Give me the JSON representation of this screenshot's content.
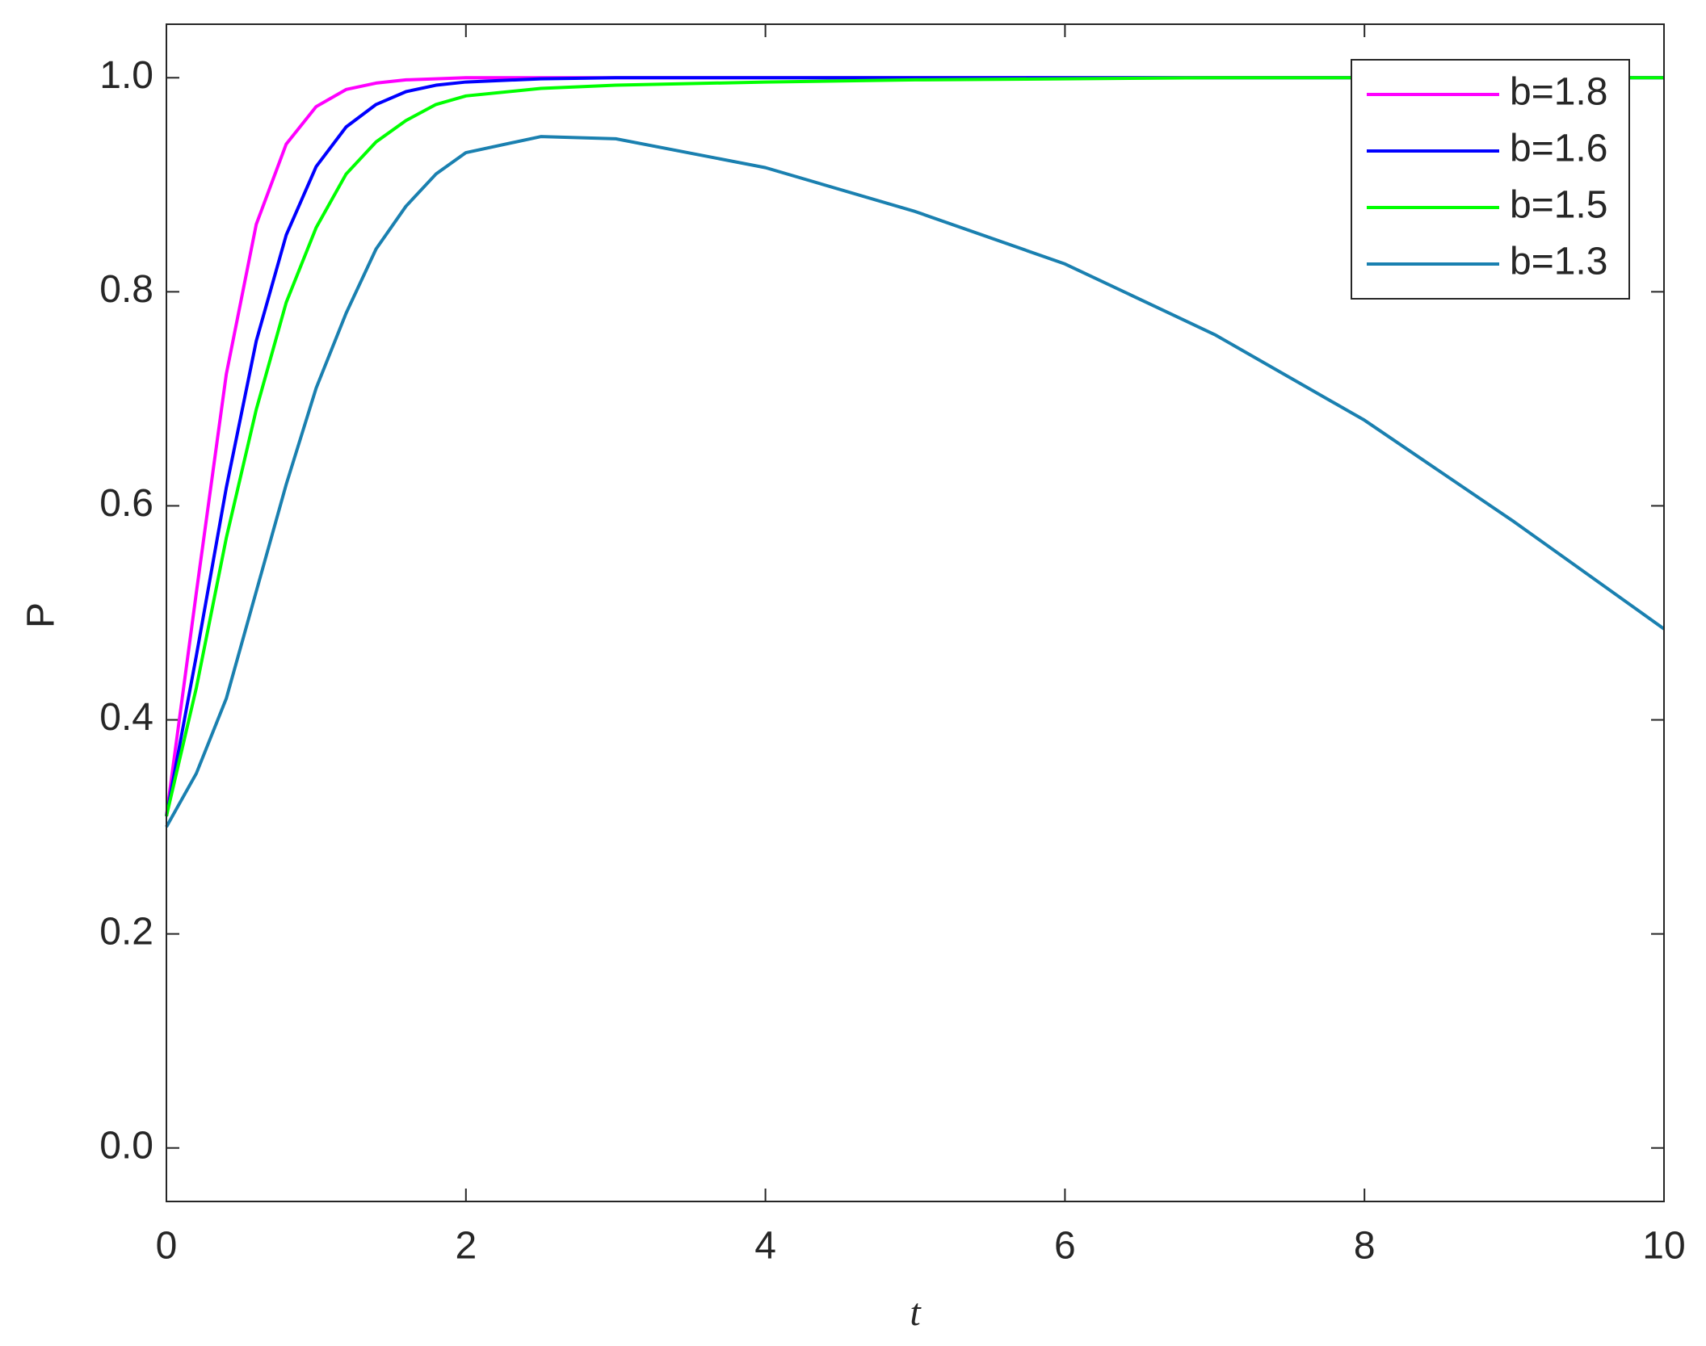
{
  "chart_data": {
    "type": "line",
    "x_label": "t",
    "y_label": "P",
    "x": [
      0,
      0.2,
      0.4,
      0.6,
      0.8,
      1,
      1.2,
      1.4,
      1.6,
      1.8,
      2,
      2.5,
      3,
      4,
      5,
      6,
      7,
      8,
      9,
      10
    ],
    "series": [
      {
        "name": "b=1.8",
        "color": "#ff00ff",
        "values": [
          0.31,
          0.519,
          0.723,
          0.863,
          0.938,
          0.973,
          0.989,
          0.995,
          0.998,
          0.999,
          1.0,
          1.0,
          1.0,
          1.0,
          1.0,
          1.0,
          1.0,
          1.0,
          1.0,
          1.0
        ]
      },
      {
        "name": "b=1.6",
        "color": "#0000ff",
        "values": [
          0.31,
          0.46,
          0.617,
          0.754,
          0.853,
          0.917,
          0.954,
          0.975,
          0.987,
          0.993,
          0.996,
          0.999,
          1.0,
          1.0,
          1.0,
          1.0,
          1.0,
          1.0,
          1.0,
          1.0
        ]
      },
      {
        "name": "b=1.5",
        "color": "#00ff00",
        "values": [
          0.31,
          0.43,
          0.57,
          0.69,
          0.79,
          0.86,
          0.91,
          0.94,
          0.96,
          0.975,
          0.983,
          0.99,
          0.993,
          0.996,
          0.998,
          0.999,
          1.0,
          1.0,
          1.0,
          1.0
        ]
      },
      {
        "name": "b=1.3",
        "color": "#1a80b0",
        "values": [
          0.3,
          0.35,
          0.42,
          0.52,
          0.62,
          0.71,
          0.78,
          0.84,
          0.88,
          0.91,
          0.93,
          0.945,
          0.943,
          0.916,
          0.875,
          0.826,
          0.76,
          0.68,
          0.585,
          0.485
        ]
      }
    ],
    "xlim": [
      0,
      10
    ],
    "ylim": [
      -0.05,
      1.05
    ],
    "xticks": [
      0,
      2,
      4,
      6,
      8,
      10
    ],
    "yticks": [
      {
        "value": 0,
        "label": "0.0"
      },
      0.2,
      0.4,
      0.6,
      0.8,
      {
        "value": 1,
        "label": "1.0"
      }
    ],
    "grid": false,
    "legend": "upper right"
  }
}
